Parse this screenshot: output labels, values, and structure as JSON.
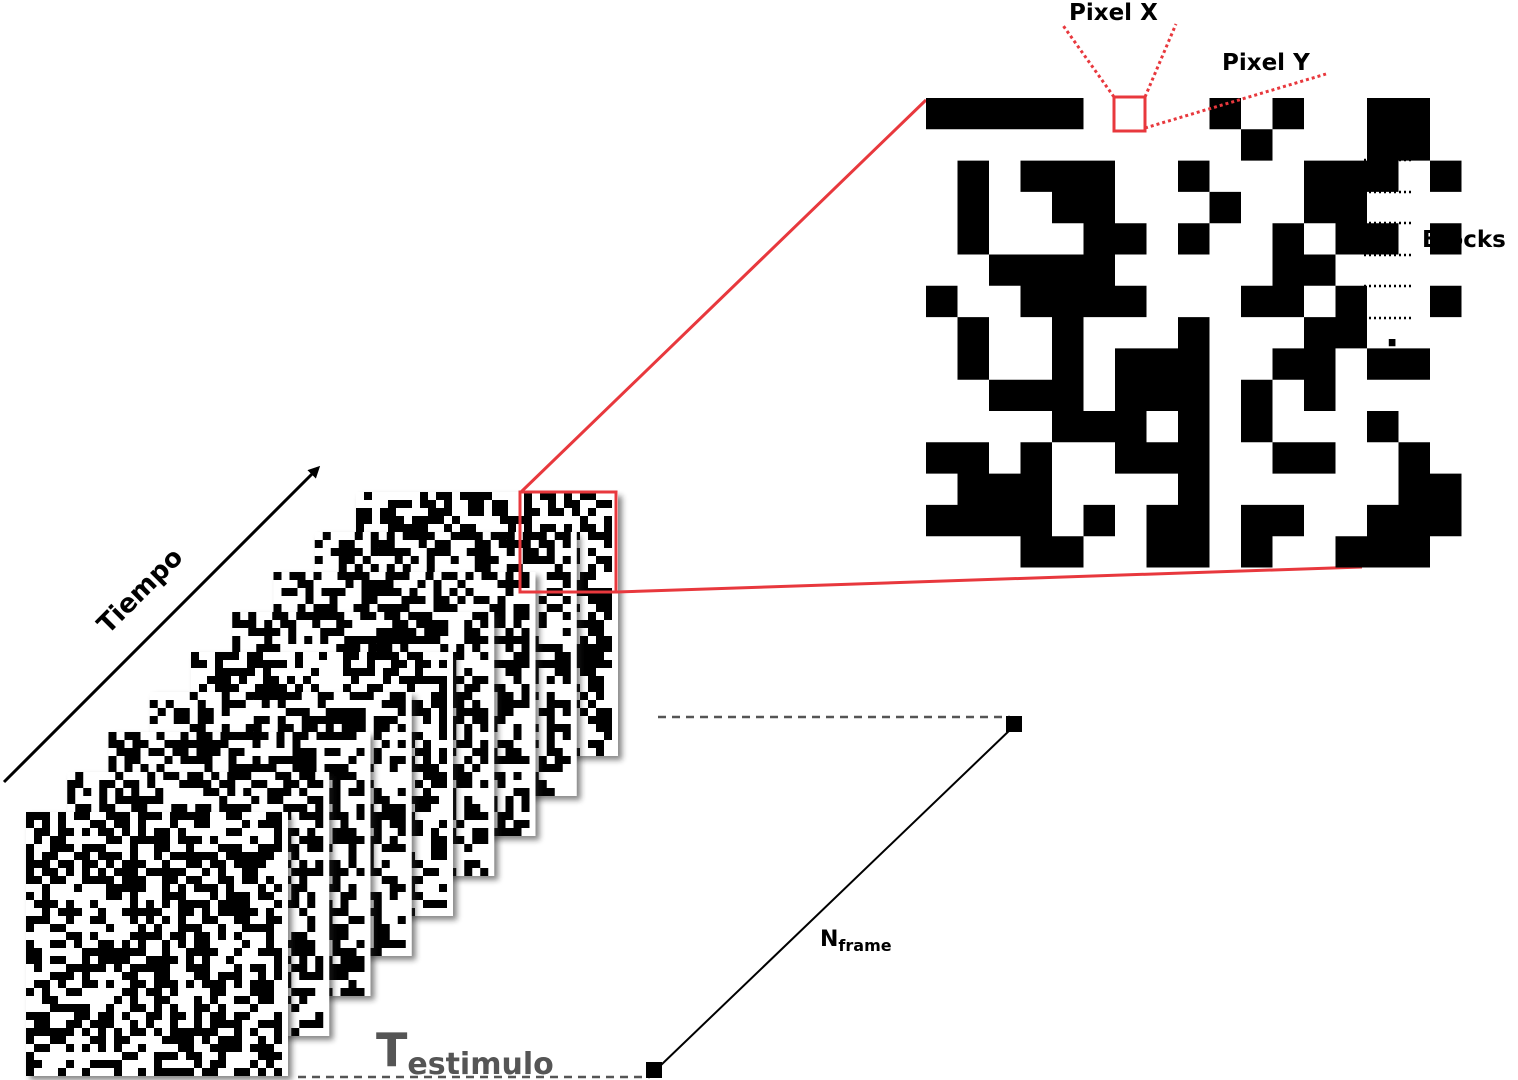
{
  "labels": {
    "time_axis": "Tiempo",
    "pixel_x": "Pixel X",
    "pixel_y": "Pixel Y",
    "blocks": "Blocks",
    "t_main": "T",
    "t_sub": "estimulo",
    "n_main": "N",
    "n_sub": "frame",
    "vdots": "⋮"
  },
  "colors": {
    "highlight": "#e8383d",
    "pixel_dark": "#000000",
    "pixel_light": "#ffffff",
    "axis": "#000000",
    "dashed": "#555555",
    "t_text": "#555555"
  },
  "stimulus": {
    "frame_count": 9,
    "zoom_grid": [
      "11111000010100110",
      "00000000001000110",
      "01011100100011101",
      "01001100010011000",
      "01000110100101101",
      "00111100000110000",
      "10011110001101001",
      "01001000100011000",
      "01001011100110110",
      "00111011101010000",
      "00001110101000100",
      "11010011100110010",
      "01110000100000011",
      "11110101101100111",
      "00011001101001110"
    ]
  }
}
